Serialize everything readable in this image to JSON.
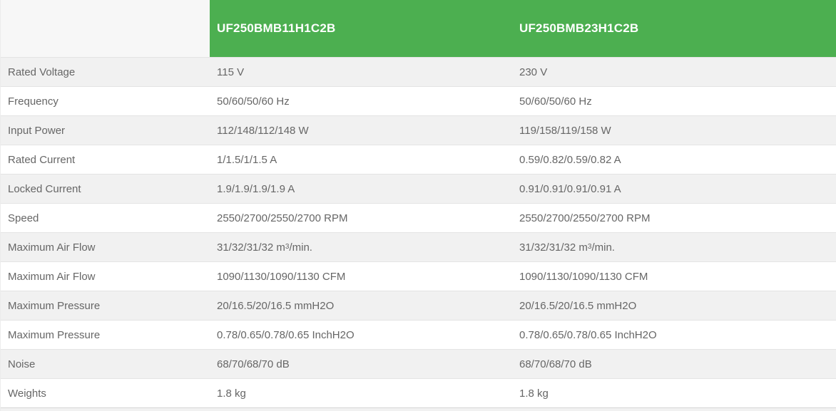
{
  "table": {
    "header": {
      "products": [
        "UF250BMB11H1C2B",
        "UF250BMB23H1C2B"
      ]
    },
    "rows": [
      {
        "label": "Rated Voltage",
        "v1": "115 V",
        "v2": "230 V"
      },
      {
        "label": "Frequency",
        "v1": "50/60/50/60 Hz",
        "v2": "50/60/50/60 Hz"
      },
      {
        "label": "Input Power",
        "v1": "112/148/112/148 W",
        "v2": "119/158/119/158 W"
      },
      {
        "label": "Rated Current",
        "v1": "1/1.5/1/1.5 A",
        "v2": "0.59/0.82/0.59/0.82 A"
      },
      {
        "label": "Locked Current",
        "v1": "1.9/1.9/1.9/1.9 A",
        "v2": "0.91/0.91/0.91/0.91 A"
      },
      {
        "label": "Speed",
        "v1": "2550/2700/2550/2700 RPM",
        "v2": "2550/2700/2550/2700 RPM"
      },
      {
        "label": "Maximum Air Flow",
        "v1": "31/32/31/32 m",
        "v1_sup": "3",
        "v1_after": "/min.",
        "v2": "31/32/31/32 m",
        "v2_sup": "3",
        "v2_after": "/min."
      },
      {
        "label": "Maximum Air Flow",
        "v1": "1090/1130/1090/1130 CFM",
        "v2": "1090/1130/1090/1130 CFM"
      },
      {
        "label": "Maximum Pressure",
        "v1": "20/16.5/20/16.5 mmH2O",
        "v2": "20/16.5/20/16.5 mmH2O"
      },
      {
        "label": "Maximum Pressure",
        "v1": "0.78/0.65/0.78/0.65 InchH2O",
        "v2": "0.78/0.65/0.78/0.65 InchH2O"
      },
      {
        "label": "Noise",
        "v1": "68/70/68/70 dB",
        "v2": "68/70/68/70 dB"
      },
      {
        "label": "Weights",
        "v1": "1.8 kg",
        "v2": "1.8 kg"
      }
    ]
  },
  "colors": {
    "header_accent_green": "#4caf50",
    "header_text": "#ffffff",
    "row_shade": "#f1f1f1",
    "row_plain": "#ffffff",
    "header_spacer_bg": "#f7f7f7",
    "body_text": "#666666",
    "row_border": "#e4e4e4"
  }
}
